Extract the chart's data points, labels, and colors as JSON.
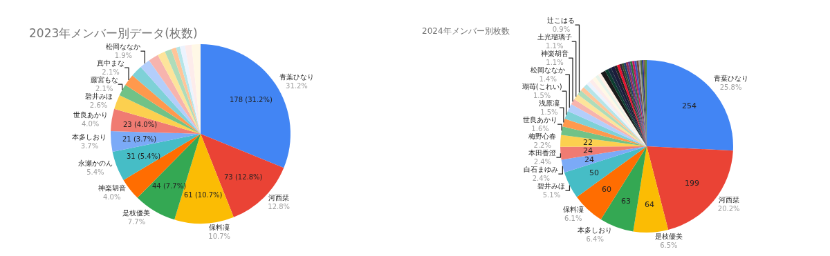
{
  "chart_data": [
    {
      "type": "pie",
      "title": "2023年メンバー別データ(枚数)",
      "categories": [
        "青葉ひなり",
        "河西栞",
        "保料凜",
        "是枝優美",
        "神楽胡音",
        "永瀬かのん",
        "本多しおり",
        "世良あかり",
        "碧井みほ",
        "藤宮もな",
        "真中まな",
        null,
        "松岡ななか",
        null,
        null,
        null,
        null,
        null,
        null,
        null,
        null
      ],
      "values": [
        31.2,
        12.8,
        10.7,
        7.7,
        4.0,
        5.4,
        3.7,
        4.0,
        2.6,
        2.1,
        2.1,
        2.1,
        1.9,
        1.8,
        1.4,
        1.2,
        0.9,
        0.7,
        0.9,
        1.2,
        1.6
      ],
      "colors": [
        "#4285f4",
        "#ea4335",
        "#fbbc04",
        "#34a853",
        "#ff6d01",
        "#46bdc6",
        "#7baaf7",
        "#f07b72",
        "#fcd04f",
        "#71c287",
        "#ff994d",
        "#7ed1d7",
        "#b3cefb",
        "#f7b4ae",
        "#fde49b",
        "#aedcba",
        "#ffc599",
        "#b5e5e8",
        "#ecf3fe",
        "#fdeceb",
        "#fff8e6"
      ],
      "value_labels": [
        [
          "178 (31.2%)",
          "31.2%"
        ],
        [
          "73 (12.8%)",
          "12.8%"
        ],
        [
          "61 (10.7%)",
          "10.7%"
        ],
        [
          "44 (7.7%)",
          "7.7%"
        ],
        [
          null,
          "4.0%"
        ],
        [
          "31 (5.4%)",
          "5.4%"
        ],
        [
          "21 (3.7%)",
          "3.7%"
        ],
        [
          "23 (4.0%)",
          "4.0%"
        ],
        [
          null,
          "2.6%"
        ],
        [
          null,
          "2.1%"
        ],
        [
          null,
          "2.1%"
        ],
        null,
        [
          null,
          "1.9%"
        ],
        null,
        null,
        null,
        null,
        null,
        null,
        null,
        null
      ],
      "legend": false
    },
    {
      "type": "pie",
      "title": "2024年メンバー別枚数",
      "categories": [
        "青葉ひなり",
        "河西栞",
        "是枝優美",
        "本多しおり",
        "保料凜",
        "碧井みほ",
        "白石まゆみ",
        "本田香澄",
        "梅野心春",
        "世良あかり",
        "浅原凜",
        "瑚苺(これい)",
        "松岡ななか",
        "神楽胡音",
        "土光瑠璃子",
        "辻こはる",
        null,
        null,
        null,
        null,
        null,
        null,
        null,
        null,
        null,
        null,
        null,
        null,
        null,
        null,
        null,
        null,
        null,
        null,
        null,
        null,
        null,
        null,
        null,
        null,
        null,
        null,
        null
      ],
      "values": [
        25.8,
        20.2,
        6.5,
        6.4,
        6.1,
        5.1,
        2.4,
        2.4,
        2.2,
        1.6,
        1.5,
        1.5,
        1.4,
        1.1,
        1.1,
        0.9,
        0.8,
        0.8,
        0.7,
        0.7,
        0.7,
        0.6,
        0.6,
        0.9,
        0.6,
        0.6,
        0.7,
        0.5,
        0.5,
        0.4,
        0.4,
        0.4,
        0.4,
        0.4,
        0.4,
        0.4,
        0.4,
        0.4,
        0.3,
        0.3,
        0.3,
        0.3,
        0.3
      ],
      "colors": [
        "#4285f4",
        "#ea4335",
        "#fbbc04",
        "#34a853",
        "#ff6d01",
        "#46bdc6",
        "#7baaf7",
        "#f07b72",
        "#fcd04f",
        "#71c287",
        "#ff994d",
        "#7ed1d7",
        "#b3cefb",
        "#f7b4ae",
        "#fde49b",
        "#aedcba",
        "#ffc599",
        "#b5e5e8",
        "#ecf3fe",
        "#fdeceb",
        "#fff8e6",
        "#e6f4ea",
        "#fff0e6",
        "#1a1a1a",
        "#0b3d2e",
        "#17263c",
        "#1b1b3a",
        "#222222",
        "#e8112d",
        "#3d1f33",
        "#2f4f2f",
        "#1f3a6e",
        "#8e2c4f",
        "#5b3b8c",
        "#2e6b3a",
        "#c2185b",
        "#3f51b5",
        "#6d4c41",
        "#9e9e9e",
        "#4a6741",
        "#283593",
        "#795548",
        "#558b2f"
      ],
      "value_labels": [
        [
          "254",
          "25.8%"
        ],
        [
          "199",
          "20.2%"
        ],
        [
          "64",
          "6.5%"
        ],
        [
          "63",
          "6.4%"
        ],
        [
          "60",
          "6.1%"
        ],
        [
          "50",
          "5.1%"
        ],
        [
          "24",
          "2.4%"
        ],
        [
          "24",
          "2.4%"
        ],
        [
          "22",
          "2.2%"
        ],
        [
          null,
          "1.6%"
        ],
        [
          null,
          "1.5%"
        ],
        [
          null,
          "1.5%"
        ],
        [
          null,
          "1.4%"
        ],
        [
          null,
          "1.1%"
        ],
        [
          null,
          "1.1%"
        ],
        [
          null,
          "0.9%"
        ],
        null,
        null,
        null,
        null,
        null,
        null,
        null,
        null,
        null,
        null,
        null,
        null,
        null,
        null,
        null,
        null,
        null,
        null,
        null,
        null,
        null,
        null,
        null,
        null,
        null,
        null,
        null
      ],
      "legend": false
    }
  ]
}
